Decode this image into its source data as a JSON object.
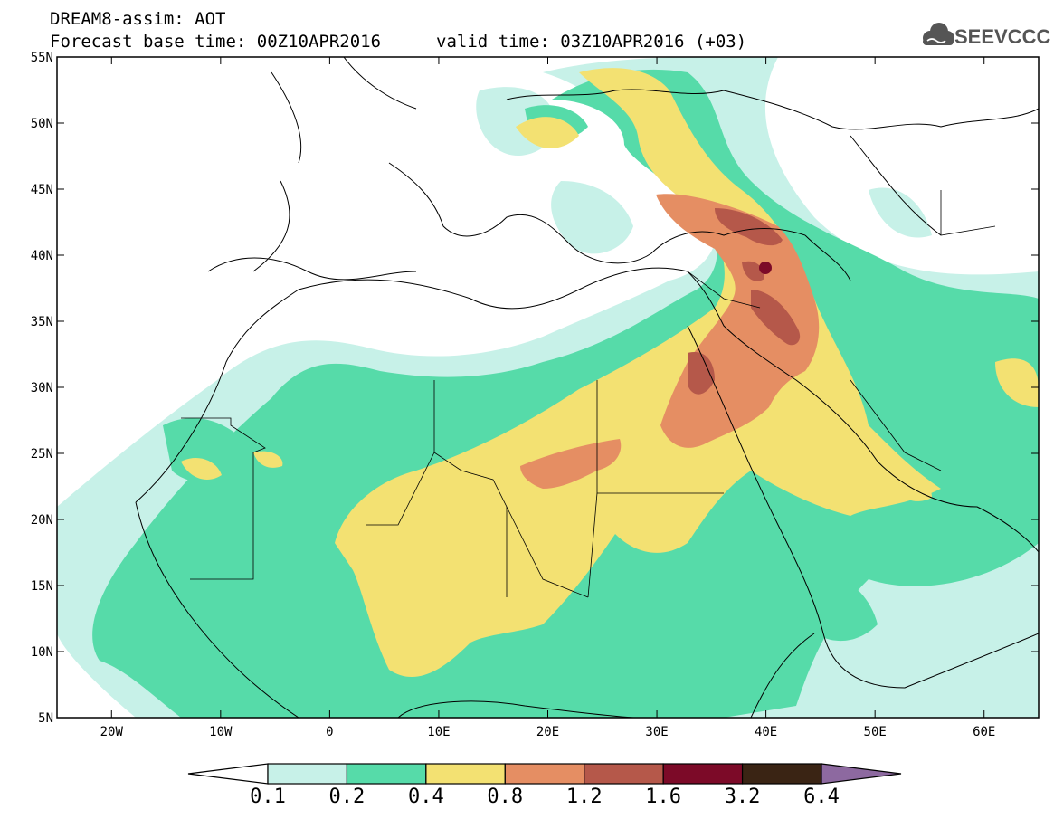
{
  "header": {
    "title": "DREAM8-assim: AOT",
    "base_time": "Forecast base time: 00Z10APR2016",
    "valid_time": "valid time: 03Z10APR2016 (+03)"
  },
  "logo": {
    "text": "SEEVCCC",
    "icon": "cloud-icon"
  },
  "map": {
    "lon_range": [
      -25,
      65
    ],
    "lat_range": [
      5,
      55
    ],
    "lat_ticks": [
      "55N",
      "50N",
      "45N",
      "40N",
      "35N",
      "30N",
      "25N",
      "20N",
      "15N",
      "10N",
      "5N"
    ],
    "lon_ticks": [
      "20W",
      "10W",
      "0",
      "10E",
      "20E",
      "30E",
      "40E",
      "50E",
      "60E"
    ]
  },
  "colorbar": {
    "labels": [
      "0.1",
      "0.2",
      "0.4",
      "0.8",
      "1.2",
      "1.6",
      "3.2",
      "6.4"
    ],
    "colors": [
      "#ffffff",
      "#c7f1e8",
      "#56dba9",
      "#f3e172",
      "#e58e63",
      "#b5584a",
      "#7c0a28",
      "#3a2414",
      "#8d69a0"
    ]
  }
}
